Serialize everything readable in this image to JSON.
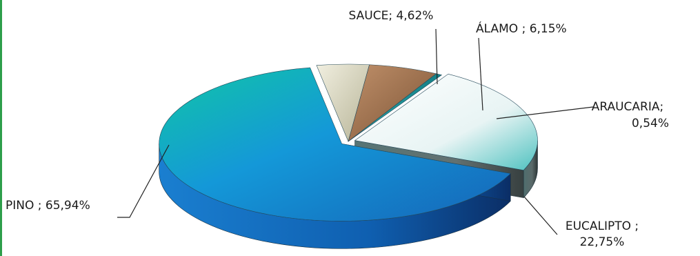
{
  "chart_data": {
    "type": "pie",
    "style": "3d-exploded",
    "title": "",
    "slices": [
      {
        "name": "PINO",
        "value": 65.94,
        "label": "PINO ; 65,94%",
        "color": "#1a86d6"
      },
      {
        "name": "SAUCE",
        "value": 4.62,
        "label": "SAUCE; 4,62%",
        "color": "#d9d6c0"
      },
      {
        "name": "ÁLAMO",
        "value": 6.15,
        "label": "ÁLAMO ; 6,15%",
        "color": "#9a6b46"
      },
      {
        "name": "ARAUCARIA",
        "value": 0.54,
        "label_lines": [
          "ARAUCARIA;",
          "0,54%"
        ],
        "color": "#1c9aa0"
      },
      {
        "name": "EUCALIPTO",
        "value": 22.75,
        "label_lines": [
          "EUCALIPTO ;",
          "22,75%"
        ],
        "color": "#e6f3f3"
      }
    ],
    "legend": "none",
    "grid": false
  }
}
